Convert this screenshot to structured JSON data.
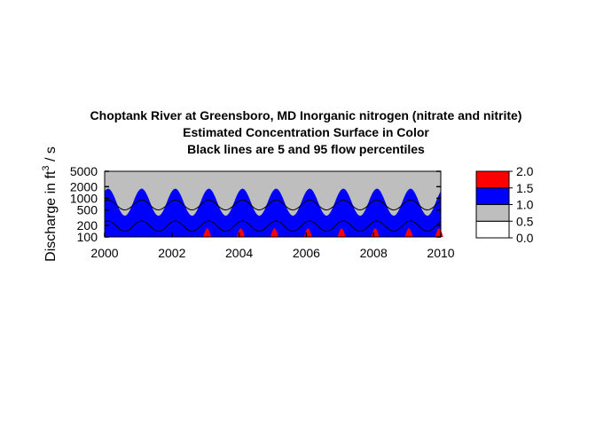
{
  "chart_data": {
    "type": "heatmap",
    "title_lines": [
      "Choptank River at Greensboro, MD    Inorganic nitrogen (nitrate and nitrite)",
      "Estimated Concentration Surface in Color",
      "Black lines are 5 and 95 flow percentiles"
    ],
    "ylabel": "Discharge in ft",
    "ylabel_superscript": "3",
    "ylabel_suffix": " / s",
    "xlim": [
      2000,
      2010
    ],
    "ylim": [
      100,
      5000
    ],
    "y_scale": "log",
    "x_ticks": [
      2000,
      2002,
      2004,
      2006,
      2008,
      2010
    ],
    "x_tick_labels": [
      "2000",
      "2002",
      "2004",
      "2006",
      "2008",
      "2010"
    ],
    "y_ticks": [
      100,
      200,
      500,
      1000,
      2000,
      5000
    ],
    "y_tick_labels": [
      "100",
      "200",
      "500",
      "1000",
      "2000",
      "5000"
    ],
    "legend": {
      "placement": "right",
      "breaks": [
        0.0,
        0.5,
        1.0,
        1.5,
        2.0
      ],
      "labels": [
        "0.0",
        "0.5",
        "1.0",
        "1.5",
        "2.0"
      ],
      "colors": [
        "#ffffff",
        "#bebebe",
        "#0000ff",
        "#ff0000"
      ]
    },
    "percentile_lines": [
      {
        "percentile": 5,
        "min_flow": 140,
        "max_flow": 260
      },
      {
        "percentile": 95,
        "min_flow": 500,
        "max_flow": 900
      }
    ]
  }
}
